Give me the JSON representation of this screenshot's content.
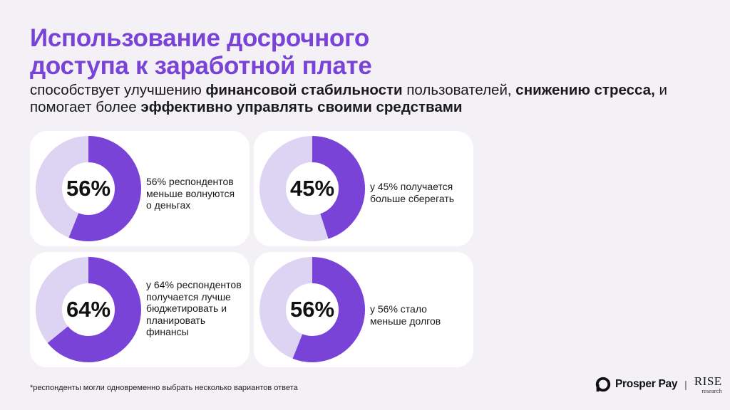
{
  "title": {
    "line1": "Использование досрочного",
    "line2": "доступа к заработной плате"
  },
  "subtitle": {
    "parts": [
      {
        "text": "способствует улучшению ",
        "bold": false
      },
      {
        "text": "финансовой стабильности",
        "bold": true
      },
      {
        "text": " пользователей, ",
        "bold": false
      },
      {
        "text": "снижению стресса,",
        "bold": true
      },
      {
        "text": " и помогает более ",
        "bold": false
      },
      {
        "text": "эффективно управлять своими средствами",
        "bold": true
      }
    ]
  },
  "chart_data": {
    "type": "pie",
    "subtype": "donut",
    "items": [
      {
        "value": 56,
        "label": "56%",
        "description": "56% респондентов меньше волнуются о деньгах"
      },
      {
        "value": 45,
        "label": "45%",
        "description": "у 45% получается больше сберегать"
      },
      {
        "value": 64,
        "label": "64%",
        "description": "у 64% респондентов получается лучше бюджетировать и планировать финансы"
      },
      {
        "value": 56,
        "label": "56%",
        "description": "у 56% стало меньше долгов"
      }
    ],
    "colors": {
      "filled": "#7a43d8",
      "track": "#ddd3f3"
    }
  },
  "footnote": "*респонденты могли одновременно выбрать несколько вариантов ответа",
  "logos": {
    "prosper": "Prosper Pay",
    "separator": "|",
    "rise": "RISE",
    "rise_sub": "research"
  }
}
